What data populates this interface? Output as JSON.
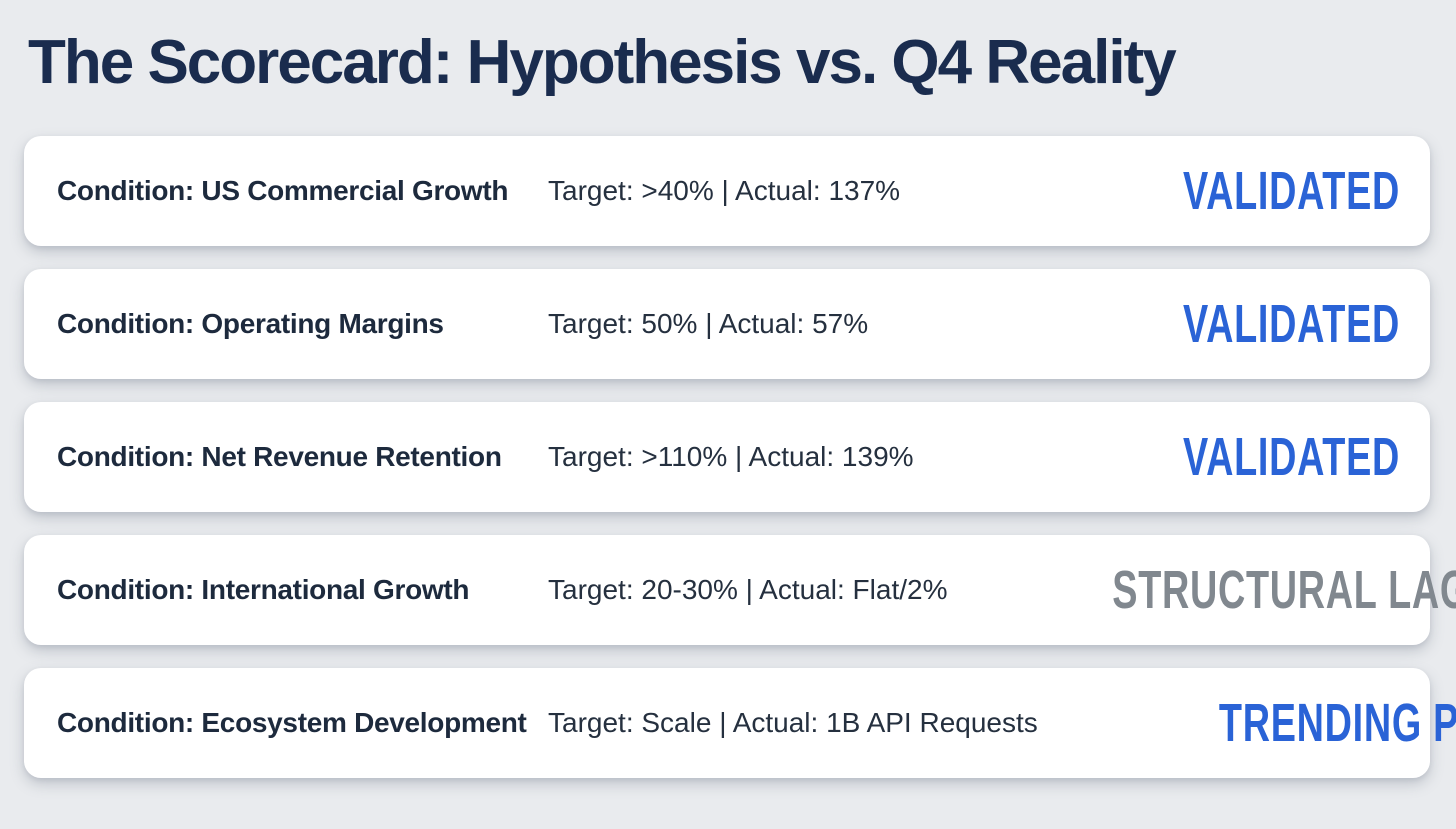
{
  "slide": {
    "title": "The Scorecard: Hypothesis vs. Q4 Reality"
  },
  "colors": {
    "background": "#e9ebee",
    "card": "#ffffff",
    "title-text": "#1a2c4e",
    "condition-text": "#1d2a3d",
    "metrics-text": "#25303f",
    "status-validated": "#2a63d6",
    "status-lag": "#81888f"
  },
  "rows": [
    {
      "condition": "Condition: US Commercial Growth",
      "metrics": "Target: >40% | Actual: 137%",
      "status": "VALIDATED",
      "status_type": "validated",
      "status_color": "#2a63d6"
    },
    {
      "condition": "Condition: Operating Margins",
      "metrics": "Target: 50% | Actual: 57%",
      "status": "VALIDATED",
      "status_type": "validated",
      "status_color": "#2a63d6"
    },
    {
      "condition": "Condition: Net Revenue Retention",
      "metrics": "Target: >110% | Actual: 139%",
      "status": "VALIDATED",
      "status_type": "validated",
      "status_color": "#2a63d6"
    },
    {
      "condition": "Condition: International Growth",
      "metrics": "Target: 20-30% | Actual: Flat/2%",
      "status": "STRUCTURAL LAG",
      "status_type": "lag",
      "status_color": "#81888f"
    },
    {
      "condition": "Condition: Ecosystem Development",
      "metrics": "Target: Scale | Actual: 1B API Requests",
      "status": "TRENDING POSITIVE",
      "status_type": "validated",
      "status_color": "#2a63d6"
    }
  ]
}
